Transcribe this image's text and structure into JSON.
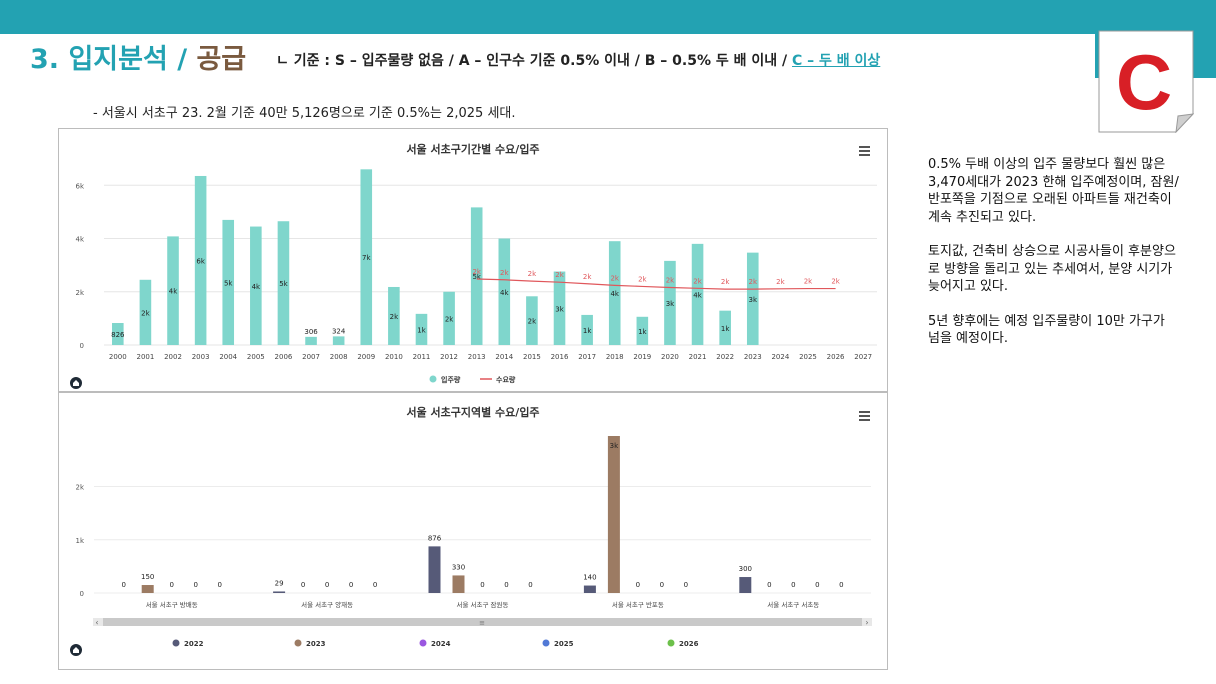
{
  "header": {
    "title_prefix": "3. 입지분석 / ",
    "title_accent": "공급",
    "criteria_prefix": "ㄴ 기준 : S – 입주물량 없음 / A – 인구수 기준 0.5% 이내 / B – 0.5% 두 배 이내 / ",
    "criteria_highlight": "C – 두 배 이상"
  },
  "badge": {
    "grade": "C",
    "color": "#d81f26"
  },
  "note": "- 서울시 서초구 23. 2월 기준 40만 5,126명으로 기준 0.5%는 2,025 세대.",
  "side_text": [
    "0.5% 두배 이상의 입주 물량보다 훨씬 많은 3,470세대가 2023 한해 입주예정이며, 잠원/반포쪽을 기점으로 오래된 아파트들 재건축이 계속 추진되고 있다.",
    "토지값, 건축비 상승으로 시공사들이 후분양으로 방향을 돌리고 있는 추세여서, 분양 시기가 늦어지고 있다.",
    "5년 향후에는 예정 입주물량이 10만 가구가 넘을 예정이다."
  ],
  "chart_data": [
    {
      "type": "bar",
      "title": "서울 서초구기간별 수요/입주",
      "categories": [
        "2000",
        "2001",
        "2002",
        "2003",
        "2004",
        "2005",
        "2006",
        "2007",
        "2008",
        "2009",
        "2010",
        "2011",
        "2012",
        "2013",
        "2014",
        "2015",
        "2016",
        "2017",
        "2018",
        "2019",
        "2020",
        "2021",
        "2022",
        "2023",
        "2024",
        "2025",
        "2026",
        "2027"
      ],
      "y_ticks": [
        "0",
        "2k",
        "4k",
        "6k"
      ],
      "ylim": [
        0,
        6800
      ],
      "series": [
        {
          "name": "입주량",
          "type": "bar",
          "color": "#7fd6cc",
          "values": [
            826,
            2450,
            4080,
            6350,
            4700,
            4450,
            4650,
            306,
            324,
            6600,
            2180,
            1170,
            2000,
            5170,
            4000,
            1830,
            2760,
            1130,
            3900,
            1060,
            3160,
            3800,
            1290,
            3470,
            null,
            null,
            null,
            null
          ],
          "labels": [
            "826",
            "2k",
            "4k",
            "6k",
            "5k",
            "4k",
            "5k",
            "306",
            "324",
            "7k",
            "2k",
            "1k",
            "2k",
            "5k",
            "4k",
            "2k",
            "3k",
            "1k",
            "4k",
            "1k",
            "3k",
            "4k",
            "1k",
            "3k",
            "",
            "",
            "",
            ""
          ]
        },
        {
          "name": "수요량",
          "type": "line",
          "color": "#e0575b",
          "values": [
            null,
            null,
            null,
            null,
            null,
            null,
            null,
            null,
            null,
            null,
            null,
            null,
            null,
            2480,
            2450,
            2400,
            2360,
            2300,
            2240,
            2200,
            2160,
            2130,
            2100,
            2100,
            2110,
            2120,
            2120,
            null
          ],
          "labels": [
            "",
            "",
            "",
            "",
            "",
            "",
            "",
            "",
            "",
            "",
            "",
            "",
            "",
            "2k",
            "2k",
            "2k",
            "2k",
            "2k",
            "2k",
            "2k",
            "2k",
            "2k",
            "2k",
            "2k",
            "2k",
            "2k",
            "2k",
            ""
          ]
        }
      ],
      "legend_position": "bottom",
      "grid": true
    },
    {
      "type": "bar",
      "title": "서울 서초구지역별 수요/입주",
      "categories": [
        "서울 서초구 방배동",
        "서울 서초구 양재동",
        "서울 서초구 잠원동",
        "서울 서초구 반포동",
        "서울 서초구 서초동"
      ],
      "y_ticks": [
        "0",
        "1k",
        "2k"
      ],
      "ylim": [
        0,
        2950
      ],
      "series": [
        {
          "name": "2022",
          "color": "#565a78",
          "values": [
            0,
            29,
            876,
            140,
            300
          ],
          "labels": [
            "0",
            "29",
            "876",
            "140",
            "300"
          ]
        },
        {
          "name": "2023",
          "color": "#9c7b63",
          "values": [
            150,
            0,
            330,
            2950,
            0
          ],
          "labels": [
            "150",
            "0",
            "330",
            "3k",
            "0"
          ]
        },
        {
          "name": "2024",
          "color": "#9a57e0",
          "values": [
            0,
            0,
            0,
            0,
            0
          ],
          "labels": [
            "0",
            "0",
            "0",
            "0",
            "0"
          ]
        },
        {
          "name": "2025",
          "color": "#5179d6",
          "values": [
            0,
            0,
            0,
            0,
            0
          ],
          "labels": [
            "0",
            "0",
            "0",
            "0",
            "0"
          ]
        },
        {
          "name": "2026",
          "color": "#6cc04a",
          "values": [
            0,
            0,
            0,
            0,
            0
          ],
          "labels": [
            "0",
            "0",
            "0",
            "0",
            "0"
          ]
        }
      ],
      "legend_position": "bottom",
      "grid": true
    }
  ]
}
